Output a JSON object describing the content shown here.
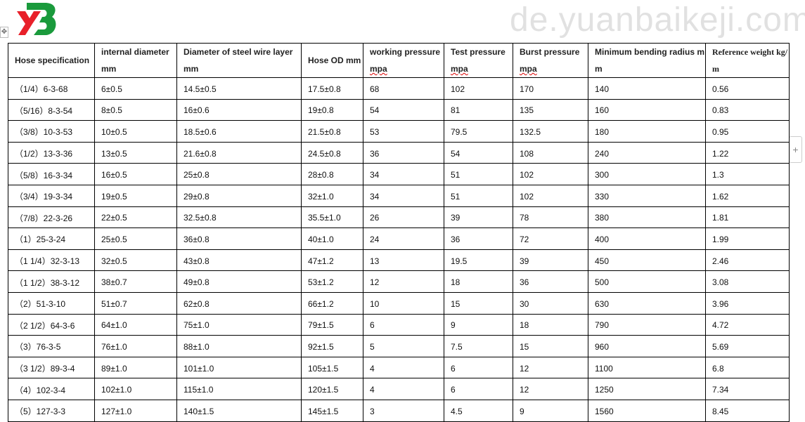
{
  "logo": {
    "text": "YB",
    "colors": {
      "red": "#e8202a",
      "green": "#1a9a3c"
    }
  },
  "watermark": "de.yuanbaikeji.com",
  "table": {
    "headers": [
      {
        "text": "Hose specification"
      },
      {
        "text": "internal diameter mm"
      },
      {
        "text": "Diameter of steel wire layer mm"
      },
      {
        "text": "Hose OD mm"
      },
      {
        "pre": "working pressure ",
        "sq": "mpa"
      },
      {
        "pre": "Test pressure ",
        "sq": "mpa"
      },
      {
        "pre": "Burst pressure ",
        "sq": "mpa"
      },
      {
        "text": "Minimum bending radius mm"
      },
      {
        "text": "Reference weight kg/m"
      }
    ],
    "rows": [
      [
        "（1/4）6-3-68",
        "6±0.5",
        "14.5±0.5",
        "17.5±0.8",
        "68",
        "102",
        "170",
        "140",
        "0.56"
      ],
      [
        "（5/16）8-3-54",
        "8±0.5",
        "16±0.6",
        "19±0.8",
        "54",
        "81",
        "135",
        "160",
        "0.83"
      ],
      [
        "（3/8）10-3-53",
        "10±0.5",
        "18.5±0.6",
        "21.5±0.8",
        "53",
        "79.5",
        "132.5",
        "180",
        "0.95"
      ],
      [
        "（1/2）13-3-36",
        "13±0.5",
        "21.6±0.8",
        "24.5±0.8",
        "36",
        "54",
        "108",
        "240",
        "1.22"
      ],
      [
        "（5/8）16-3-34",
        "16±0.5",
        "25±0.8",
        "28±0.8",
        "34",
        "51",
        "102",
        "300",
        "1.3"
      ],
      [
        "（3/4）19-3-34",
        "19±0.5",
        "29±0.8",
        "32±1.0",
        "34",
        "51",
        "102",
        "330",
        "1.62"
      ],
      [
        "（7/8）22-3-26",
        "22±0.5",
        "32.5±0.8",
        "35.5±1.0",
        "26",
        "39",
        "78",
        "380",
        "1.81"
      ],
      [
        "（1）25-3-24",
        "25±0.5",
        "36±0.8",
        "40±1.0",
        "24",
        "36",
        "72",
        "400",
        "1.99"
      ],
      [
        "（1 1/4）32-3-13",
        "32±0.5",
        "43±0.8",
        "47±1.2",
        "13",
        "19.5",
        "39",
        "450",
        "2.46"
      ],
      [
        "（1 1/2）38-3-12",
        "38±0.7",
        "49±0.8",
        "53±1.2",
        "12",
        "18",
        "36",
        "500",
        "3.08"
      ],
      [
        "（2）51-3-10",
        "51±0.7",
        "62±0.8",
        "66±1.2",
        "10",
        "15",
        "30",
        "630",
        "3.96"
      ],
      [
        "（2 1/2）64-3-6",
        "64±1.0",
        "75±1.0",
        "79±1.5",
        "6",
        "9",
        "18",
        "790",
        "4.72"
      ],
      [
        "（3）76-3-5",
        "76±1.0",
        "88±1.0",
        "92±1.5",
        "5",
        "7.5",
        "15",
        "960",
        "5.69"
      ],
      [
        "（3 1/2）89-3-4",
        "89±1.0",
        "101±1.0",
        "105±1.5",
        "4",
        "6",
        "12",
        "1100",
        "6.8"
      ],
      [
        "（4）102-3-4",
        "102±1.0",
        "115±1.0",
        "120±1.5",
        "4",
        "6",
        "12",
        "1250",
        "7.34"
      ],
      [
        "（5）127-3-3",
        "127±1.0",
        "140±1.5",
        "145±1.5",
        "3",
        "4.5",
        "9",
        "1560",
        "8.45"
      ]
    ]
  }
}
